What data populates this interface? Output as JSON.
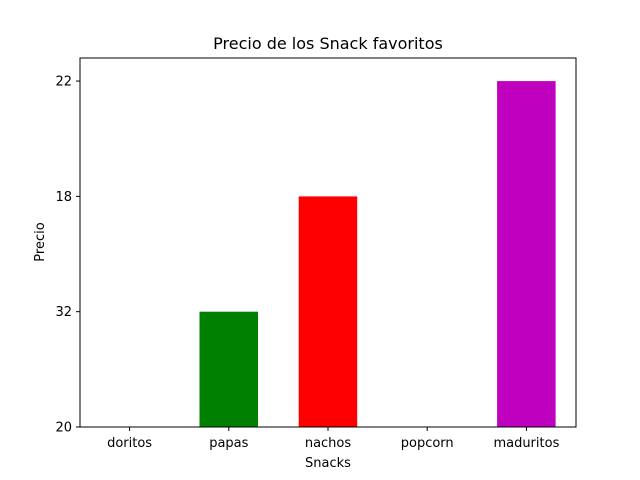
{
  "chart_data": {
    "type": "bar",
    "title": "Precio de los Snack favoritos",
    "xlabel": "Snacks",
    "ylabel": "Precio",
    "categories": [
      "doritos",
      "papas",
      "nachos",
      "popcorn",
      "maduritos"
    ],
    "values": [
      0,
      1,
      2,
      0,
      3
    ],
    "y_ticks": [
      {
        "value": 0,
        "label": "20"
      },
      {
        "value": 1,
        "label": "32"
      },
      {
        "value": 2,
        "label": "18"
      },
      {
        "value": 3,
        "label": "22"
      }
    ],
    "ylim": [
      0,
      3.2
    ],
    "colors": [
      "#1f77b4",
      "#008000",
      "#ff0000",
      "#00bfbf",
      "#bf00bf"
    ],
    "grid": false,
    "legend": "none"
  }
}
